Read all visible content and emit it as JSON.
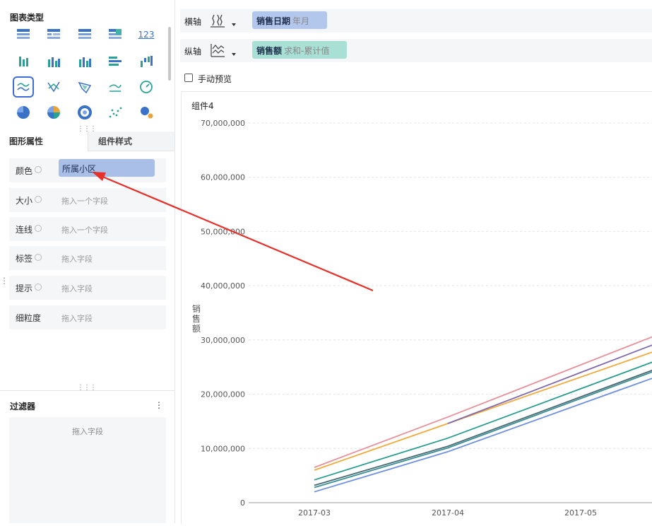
{
  "left_panel": {
    "chart_type_title": "图表类型",
    "chart_icons": [
      {
        "name": "table-icon",
        "color": "#3a72c8",
        "selected": false
      },
      {
        "name": "crosstab-icon",
        "color": "#3a72c8",
        "selected": false
      },
      {
        "name": "detail-table-icon",
        "color": "#3a72c8",
        "selected": false
      },
      {
        "name": "grid-table-icon",
        "color": "#3a72c8",
        "selected": false
      },
      {
        "name": "kpi-number-icon",
        "color": "#3a72c8",
        "selected": false,
        "text": "123"
      },
      {
        "name": "stacked-bar-icon",
        "color": "#2aa198",
        "selected": false
      },
      {
        "name": "grouped-bar-icon",
        "color": "#2aa198",
        "selected": false
      },
      {
        "name": "column-chart-icon",
        "color": "#2aa198",
        "selected": false
      },
      {
        "name": "horizontal-bar-icon",
        "color": "#2aa198",
        "selected": false
      },
      {
        "name": "waterfall-icon",
        "color": "#2aa198",
        "selected": false
      },
      {
        "name": "line-chart-icon",
        "color": "#2aa198",
        "selected": true
      },
      {
        "name": "radar-icon",
        "color": "#3a72c8",
        "selected": false
      },
      {
        "name": "funnel-icon",
        "color": "#3a72c8",
        "selected": false
      },
      {
        "name": "area-chart-icon",
        "color": "#2aa198",
        "selected": false
      },
      {
        "name": "gauge-icon",
        "color": "#2aa198",
        "selected": false
      },
      {
        "name": "pie-chart-icon",
        "color": "#3a72c8",
        "selected": false
      },
      {
        "name": "rose-chart-icon",
        "color": "#e8a33a",
        "selected": false
      },
      {
        "name": "donut-chart-icon",
        "color": "#3a72c8",
        "selected": false
      },
      {
        "name": "scatter-icon",
        "color": "#2aa198",
        "selected": false
      },
      {
        "name": "bubble-icon",
        "color": "#3a72c8",
        "selected": false
      }
    ],
    "tabs": {
      "graphic_props": "图形属性",
      "component_style": "组件样式"
    },
    "properties": [
      {
        "label": "颜色",
        "value": "所属小区",
        "placeholder": ""
      },
      {
        "label": "大小",
        "value": "",
        "placeholder": "拖入一个字段"
      },
      {
        "label": "连线",
        "value": "",
        "placeholder": "拖入一个字段"
      },
      {
        "label": "标签",
        "value": "",
        "placeholder": "拖入字段"
      },
      {
        "label": "提示",
        "value": "",
        "placeholder": "拖入字段"
      },
      {
        "label": "细粒度",
        "value": "",
        "placeholder": "拖入字段"
      }
    ],
    "filter": {
      "title": "过滤器",
      "menu": "⋮",
      "placeholder": "拖入字段"
    }
  },
  "axes": {
    "x": {
      "label": "横轴",
      "field": "销售日期",
      "agg": "年月",
      "chip_color": "#b3c7ec"
    },
    "y": {
      "label": "纵轴",
      "field": "销售额",
      "agg": "求和-累计值",
      "chip_color": "#a8e0d6"
    }
  },
  "manual_preview": "手动预览",
  "chart_data": {
    "type": "line",
    "title": "组件4",
    "ylabel": "销售额",
    "ylim": [
      0,
      70000000
    ],
    "yticks": [
      "70,000,000",
      "60,000,000",
      "50,000,000",
      "40,000,000",
      "30,000,000",
      "20,000,000",
      "10,000,000",
      "0"
    ],
    "categories": [
      "2017-03",
      "2017-04",
      "2017-05"
    ],
    "series": [
      {
        "color": "#e8909a",
        "values": [
          6500000,
          15800000,
          25400000
        ]
      },
      {
        "color": "#f2a93b",
        "values": [
          6000000,
          14600000,
          null
        ]
      },
      {
        "color": "#8068ad",
        "values": [
          null,
          14600000,
          24000000
        ]
      },
      {
        "color": "#2a9d8f",
        "values": [
          4200000,
          11900000,
          21000000
        ]
      },
      {
        "color": "#4a6a72",
        "values": [
          3200000,
          10400000,
          19500000
        ]
      },
      {
        "color": "#3a8f96",
        "values": [
          2800000,
          10100000,
          19200000
        ]
      },
      {
        "color": "#6f8fe0",
        "values": [
          2000000,
          9400000,
          18200000
        ]
      }
    ],
    "grid": true
  },
  "colors": {
    "accent": "#3d6dd6",
    "arrow": "#e8302a"
  }
}
